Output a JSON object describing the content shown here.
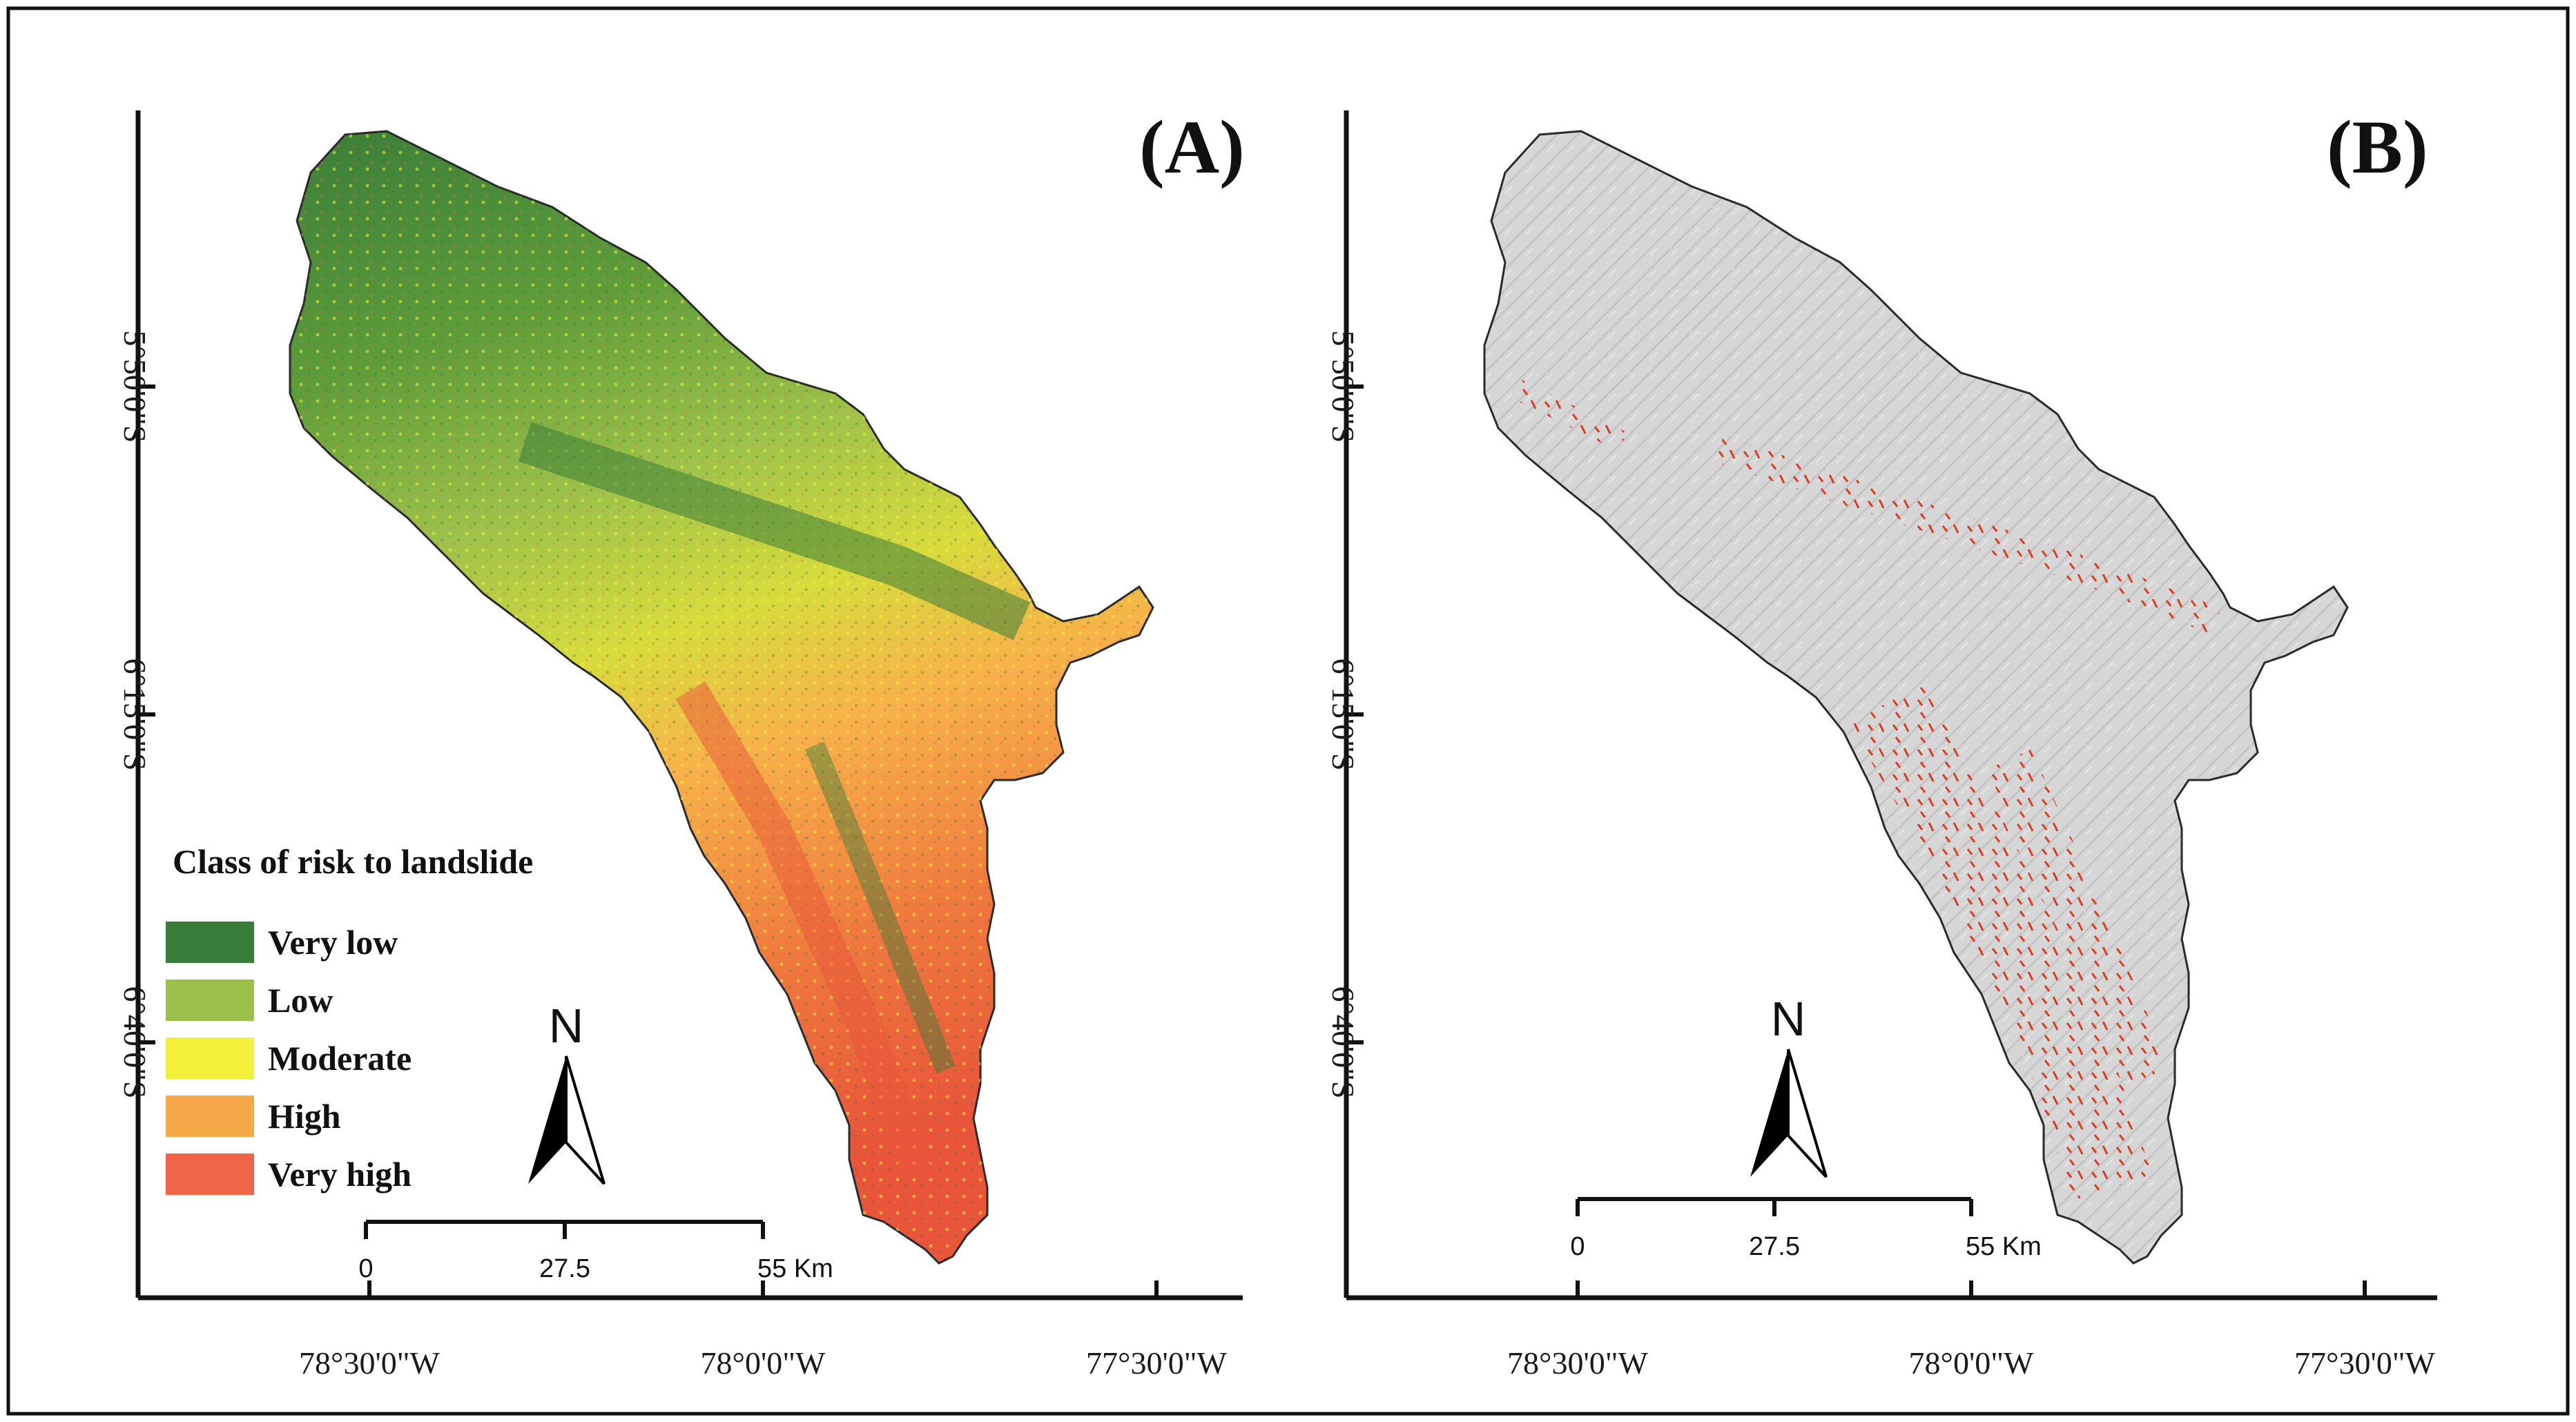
{
  "panels": [
    {
      "label": "(A)"
    },
    {
      "label": "(B)"
    }
  ],
  "lat_ticks": [
    "5°50'0\"S",
    "6°15'0\"S",
    "6°40'0\"S"
  ],
  "lon_ticks": [
    "78°30'0\"W",
    "78°0'0\"W",
    "77°30'0\"W"
  ],
  "legend": {
    "title": "Class of risk to landslide",
    "items": [
      {
        "label": "Very low",
        "color": "#3a7d3a"
      },
      {
        "label": "Low",
        "color": "#9cc14a"
      },
      {
        "label": "Moderate",
        "color": "#f2f03a"
      },
      {
        "label": "High",
        "color": "#f7a94a"
      },
      {
        "label": "Very high",
        "color": "#f0644a"
      }
    ]
  },
  "north_arrow": {
    "label": "N",
    "icon": "north-arrow-icon"
  },
  "scale_bar": {
    "labels": [
      "0",
      "27.5",
      "55 Km"
    ]
  },
  "colors": {
    "basemap": "#d4d4d4",
    "landslide": "#e03a1e"
  }
}
